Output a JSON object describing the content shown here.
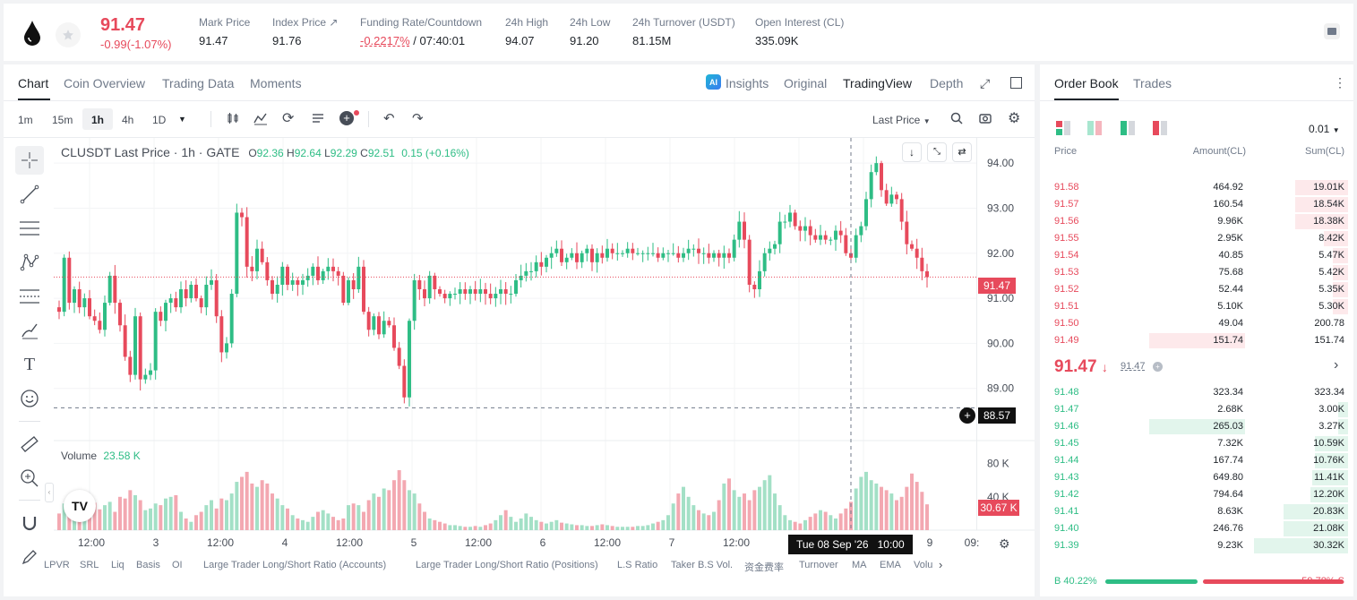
{
  "header": {
    "last_price": "91.47",
    "change": "-0.99(-1.07%)",
    "stats": [
      {
        "label": "Mark Price",
        "value": "91.47"
      },
      {
        "label": "Index Price",
        "value": "91.76"
      },
      {
        "label": "Funding Rate/Countdown",
        "value_red": "-0.2217%",
        "value_rest": " / 07:40:01"
      },
      {
        "label": "24h High",
        "value": "94.07"
      },
      {
        "label": "24h Low",
        "value": "91.20"
      },
      {
        "label": "24h Turnover (USDT)",
        "value": "81.15M"
      },
      {
        "label": "Open Interest (CL)",
        "value": "335.09K"
      }
    ]
  },
  "chart_tabs": [
    "Chart",
    "Coin Overview",
    "Trading Data",
    "Moments"
  ],
  "view_tabs": {
    "insights": "Insights",
    "original": "Original",
    "tradingview": "TradingView",
    "depth": "Depth"
  },
  "intervals": [
    "1m",
    "15m",
    "1h",
    "4h",
    "1D"
  ],
  "price_source": "Last Price",
  "legend": {
    "symbol": "CLUSDT Last Price · 1h · GATE",
    "o_label": "O",
    "o": "92.36",
    "h_label": "H",
    "h": "92.64",
    "l_label": "L",
    "l": "92.29",
    "c_label": "C",
    "c": "92.51",
    "chg": "0.15 (+0.16%)"
  },
  "volume_legend": {
    "label": "Volume",
    "value": "23.58 K"
  },
  "crosshair": {
    "price": "88.57",
    "time": "Tue 08 Sep '26",
    "hour": "10:00"
  },
  "price_axis_current": "91.47",
  "volume_axis_current": "30.67 K",
  "indicators": [
    "LPVR",
    "SRL",
    "Liq",
    "Basis",
    "OI",
    "Large Trader Long/Short Ratio (Accounts)",
    "Large Trader Long/Short Ratio (Positions)",
    "L.S Ratio",
    "Taker B.S Vol.",
    "资金费率",
    "Turnover",
    "MA",
    "EMA",
    "Volu"
  ],
  "order_book": {
    "tabs": [
      "Order Book",
      "Trades"
    ],
    "precision": "0.01",
    "headers": {
      "price": "Price",
      "amount": "Amount(CL)",
      "sum": "Sum(CL)"
    },
    "asks": [
      {
        "price": "91.58",
        "amount": "464.92",
        "sum": "19.01K",
        "depth": 0.55
      },
      {
        "price": "91.57",
        "amount": "160.54",
        "sum": "18.54K",
        "depth": 0.55
      },
      {
        "price": "91.56",
        "amount": "9.96K",
        "sum": "18.38K",
        "depth": 0.55
      },
      {
        "price": "91.55",
        "amount": "2.95K",
        "sum": "8.42K",
        "depth": 0.25
      },
      {
        "price": "91.54",
        "amount": "40.85",
        "sum": "5.47K",
        "depth": 0.16
      },
      {
        "price": "91.53",
        "amount": "75.68",
        "sum": "5.42K",
        "depth": 0.16
      },
      {
        "price": "91.52",
        "amount": "52.44",
        "sum": "5.35K",
        "depth": 0.16
      },
      {
        "price": "91.51",
        "amount": "5.10K",
        "sum": "5.30K",
        "depth": 0.16
      },
      {
        "price": "91.50",
        "amount": "49.04",
        "sum": "200.78",
        "depth": 0
      },
      {
        "price": "91.49",
        "amount": "151.74",
        "sum": "151.74",
        "depth": 0,
        "amt_depth": 0.37
      }
    ],
    "mid_price": "91.47",
    "mid_mark": "91.47",
    "bids": [
      {
        "price": "91.48",
        "amount": "323.34",
        "sum": "323.34",
        "depth": 0
      },
      {
        "price": "91.47",
        "amount": "2.68K",
        "sum": "3.00K",
        "depth": 0.1
      },
      {
        "price": "91.46",
        "amount": "265.03",
        "sum": "3.27K",
        "depth": 0.1,
        "amt_depth": 0.37
      },
      {
        "price": "91.45",
        "amount": "7.32K",
        "sum": "10.59K",
        "depth": 0.34
      },
      {
        "price": "91.44",
        "amount": "167.74",
        "sum": "10.76K",
        "depth": 0.34
      },
      {
        "price": "91.43",
        "amount": "649.80",
        "sum": "11.41K",
        "depth": 0.37
      },
      {
        "price": "91.42",
        "amount": "794.64",
        "sum": "12.20K",
        "depth": 0.39
      },
      {
        "price": "91.41",
        "amount": "8.63K",
        "sum": "20.83K",
        "depth": 0.67
      },
      {
        "price": "91.40",
        "amount": "246.76",
        "sum": "21.08K",
        "depth": 0.67
      },
      {
        "price": "91.39",
        "amount": "9.23K",
        "sum": "30.32K",
        "depth": 0.97
      }
    ],
    "buy_ratio": "40.22%",
    "sell_ratio": "59.78%",
    "buy_label": "B",
    "sell_label": "S",
    "buy_fraction": 0.4022
  },
  "chart_data": {
    "type": "candlestick",
    "symbol": "CLUSDT",
    "interval": "1h",
    "y_price_ticks": [
      "94.00",
      "93.00",
      "92.00",
      "91.00",
      "90.00",
      "89.00"
    ],
    "y_volume_ticks": [
      "80 K",
      "40 K"
    ],
    "x_ticks": [
      "12:00",
      "3",
      "12:00",
      "4",
      "12:00",
      "5",
      "12:00",
      "6",
      "12:00",
      "7",
      "12:00",
      "9",
      "09:"
    ],
    "ylim": [
      88.0,
      94.4
    ],
    "x_first": 0,
    "x_step_hours": 1,
    "close": [
      90.7,
      91.9,
      90.9,
      91.2,
      90.8,
      91.0,
      90.6,
      90.5,
      90.3,
      90.9,
      91.5,
      90.9,
      90.4,
      89.7,
      89.3,
      90.6,
      89.2,
      89.3,
      89.4,
      90.7,
      90.5,
      90.9,
      91.0,
      90.8,
      91.2,
      91.0,
      91.3,
      91.0,
      90.8,
      91.3,
      91.4,
      90.6,
      89.8,
      90.0,
      91.1,
      92.9,
      92.8,
      91.7,
      91.6,
      92.1,
      91.8,
      91.4,
      91.1,
      91.3,
      91.7,
      91.3,
      91.4,
      91.3,
      91.4,
      91.5,
      91.7,
      91.4,
      91.6,
      91.7,
      91.6,
      91.5,
      90.9,
      91.4,
      91.2,
      91.7,
      90.7,
      90.3,
      90.6,
      90.2,
      90.5,
      90.4,
      89.9,
      89.5,
      88.8,
      90.5,
      91.4,
      91.2,
      91.0,
      91.5,
      91.2,
      91.1,
      91.0,
      91.1,
      91.1,
      91.2,
      91.1,
      91.2,
      91.1,
      91.2,
      91.1,
      91.0,
      91.1,
      91.2,
      91.1,
      91.1,
      91.4,
      91.5,
      91.6,
      91.6,
      91.8,
      91.7,
      91.9,
      92.0,
      92.1,
      91.8,
      91.9,
      92.0,
      91.8,
      92.0,
      92.1,
      91.8,
      92.0,
      91.9,
      92.1,
      92.0,
      92.0,
      92.0,
      92.1,
      92.0,
      92.0,
      92.0,
      92.0,
      92.0,
      91.9,
      92.0,
      92.0,
      92.0,
      91.9,
      92.0,
      92.1,
      92.1,
      92.0,
      92.0,
      91.9,
      92.0,
      91.9,
      92.0,
      91.9,
      92.3,
      92.7,
      92.3,
      91.3,
      91.2,
      91.6,
      92.0,
      92.1,
      92.2,
      92.7,
      92.7,
      92.9,
      92.6,
      92.5,
      92.6,
      92.4,
      92.3,
      92.4,
      92.3,
      92.3,
      92.5,
      92.4,
      92.0,
      91.9,
      92.4,
      92.6,
      93.2,
      93.8,
      94.0,
      93.4,
      93.1,
      93.3,
      93.2,
      92.7,
      92.2,
      92.1,
      91.9,
      91.6,
      91.47
    ],
    "volume_k": [
      20,
      32,
      38,
      30,
      28,
      36,
      26,
      33,
      25,
      30,
      34,
      22,
      40,
      38,
      48,
      42,
      36,
      24,
      26,
      32,
      30,
      38,
      40,
      42,
      22,
      14,
      10,
      18,
      22,
      30,
      36,
      26,
      38,
      36,
      44,
      58,
      64,
      70,
      56,
      52,
      60,
      56,
      44,
      38,
      30,
      26,
      18,
      14,
      12,
      10,
      16,
      22,
      24,
      20,
      16,
      12,
      14,
      30,
      32,
      30,
      22,
      36,
      44,
      40,
      50,
      48,
      60,
      72,
      60,
      48,
      44,
      32,
      22,
      14,
      12,
      10,
      8,
      6,
      6,
      5,
      4,
      4,
      5,
      4,
      6,
      8,
      12,
      18,
      24,
      16,
      10,
      14,
      20,
      16,
      12,
      10,
      8,
      10,
      12,
      9,
      8,
      7,
      6,
      6,
      5,
      5,
      6,
      7,
      6,
      5,
      4,
      4,
      4,
      4,
      5,
      5,
      6,
      8,
      10,
      12,
      18,
      32,
      44,
      52,
      40,
      30,
      24,
      20,
      18,
      22,
      36,
      56,
      62,
      48,
      40,
      44,
      36,
      48,
      52,
      60,
      66,
      44,
      30,
      18,
      12,
      10,
      8,
      12,
      16,
      20,
      24,
      22,
      18,
      14,
      20,
      26,
      34,
      50,
      64,
      70,
      60,
      56,
      52,
      48,
      44,
      36,
      40,
      52,
      68,
      58,
      46,
      31
    ]
  }
}
